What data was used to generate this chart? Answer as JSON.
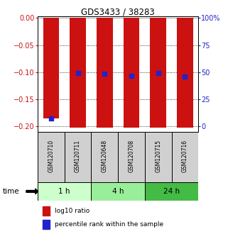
{
  "title": "GDS3433 / 38283",
  "samples": [
    "GSM120710",
    "GSM120711",
    "GSM120648",
    "GSM120708",
    "GSM120715",
    "GSM120716"
  ],
  "log10_ratio": [
    -0.185,
    -0.202,
    -0.202,
    -0.202,
    -0.202,
    -0.202
  ],
  "percentile_rank": [
    -0.185,
    -0.102,
    -0.103,
    -0.107,
    -0.101,
    -0.108
  ],
  "ylim_left": [
    -0.21,
    0.003
  ],
  "yticks_left": [
    0,
    -0.05,
    -0.1,
    -0.15,
    -0.2
  ],
  "yticks_right_labels": [
    "100%",
    "75",
    "50",
    "25",
    "0"
  ],
  "yticks_right_vals": [
    0,
    -0.05,
    -0.1,
    -0.15,
    -0.2
  ],
  "time_groups": [
    {
      "label": "1 h",
      "samples": [
        0,
        1
      ],
      "color": "#ccffcc"
    },
    {
      "label": "4 h",
      "samples": [
        2,
        3
      ],
      "color": "#99ee99"
    },
    {
      "label": "24 h",
      "samples": [
        4,
        5
      ],
      "color": "#44bb44"
    }
  ],
  "bar_color": "#cc1111",
  "blue_color": "#2222cc",
  "bar_width": 0.6,
  "blue_size": 18,
  "legend_red_label": "log10 ratio",
  "legend_blue_label": "percentile rank within the sample",
  "time_label": "time",
  "background_color": "#ffffff",
  "left_axis_color": "#cc1111",
  "right_axis_color": "#2222cc",
  "sample_bg": "#d0d0d0",
  "tick_fontsize": 7,
  "sample_fontsize": 5.5,
  "time_fontsize": 7.5,
  "legend_fontsize": 6.5,
  "title_fontsize": 8.5
}
